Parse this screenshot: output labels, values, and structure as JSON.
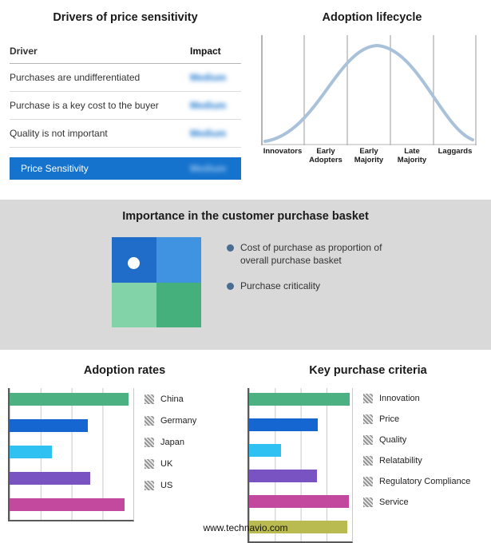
{
  "drivers_panel": {
    "title": "Drivers of price sensitivity",
    "table": {
      "col_driver": "Driver",
      "col_impact": "Impact",
      "rows": [
        {
          "driver": "Purchases are undifferentiated",
          "impact": "Medium"
        },
        {
          "driver": "Purchase is a key cost to the buyer",
          "impact": "Medium"
        },
        {
          "driver": "Quality is not important",
          "impact": "Medium"
        }
      ],
      "highlight": {
        "driver": "Price Sensitivity",
        "impact": "Medium"
      }
    }
  },
  "lifecycle_panel": {
    "title": "Adoption lifecycle",
    "curve_color": "#a9c2da"
  },
  "basket_panel": {
    "title": "Importance in the customer purchase basket",
    "legend": [
      {
        "label": "Cost of purchase as proportion of overall purchase basket"
      },
      {
        "label": "Purchase criticality"
      }
    ],
    "quadrant_colors": {
      "top_left": "#1f6dc9",
      "top_right": "#3f93e0",
      "bottom_left": "#82d4a8",
      "bottom_right": "#45b07c"
    }
  },
  "chart_data": [
    {
      "type": "bar",
      "title": "Adoption rates",
      "orientation": "horizontal",
      "categories": [
        "China",
        "Germany",
        "Japan",
        "UK",
        "US"
      ],
      "values": [
        96,
        63,
        34,
        65,
        93
      ],
      "xlim": [
        0,
        100
      ],
      "grid": true,
      "colors": [
        "#4cb182",
        "#1566d0",
        "#2fc1f2",
        "#7a53c3",
        "#c2499e"
      ]
    },
    {
      "type": "bar",
      "title": "Key purchase criteria",
      "orientation": "horizontal",
      "categories": [
        "Innovation",
        "Price",
        "Quality",
        "Relatability",
        "Regulatory Compliance",
        "Service"
      ],
      "values": [
        98,
        67,
        31,
        66,
        97,
        95
      ],
      "xlim": [
        0,
        100
      ],
      "grid": true,
      "colors": [
        "#4cb182",
        "#1566d0",
        "#2fc1f2",
        "#7a53c3",
        "#c2499e",
        "#b9ba4f"
      ]
    },
    {
      "type": "line",
      "title": "Adoption lifecycle",
      "x": [
        "Innovators",
        "Early Adopters",
        "Early Majority",
        "Late Majority",
        "Laggards"
      ]
    }
  ],
  "footer": {
    "url": "www.technavio.com"
  }
}
